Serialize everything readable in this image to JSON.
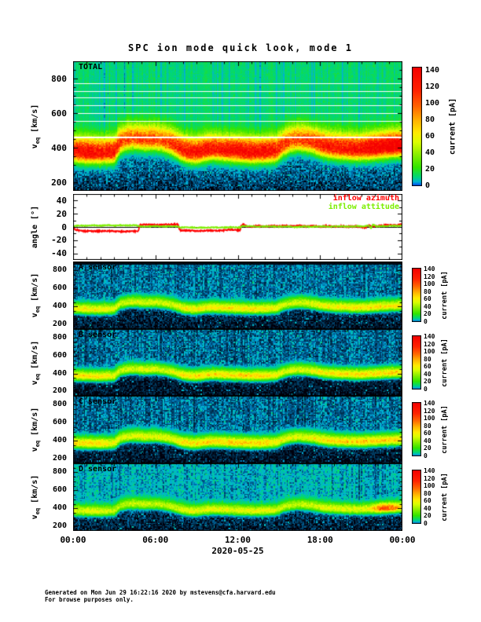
{
  "page": {
    "title": "SPC ion mode quick look, mode 1",
    "x_axis": {
      "tick_labels": [
        "00:00",
        "06:00",
        "12:00",
        "18:00",
        "00:00"
      ],
      "date_label": "2020-05-25"
    },
    "footer": {
      "line1": "Generated on Mon Jun 29 16:22:16 2020 by mstevens@cfa.harvard.edu",
      "line2": "For browse purposes only."
    }
  },
  "colorbar": {
    "label": "current [pA]",
    "ticks": [
      0,
      20,
      40,
      60,
      80,
      100,
      120,
      140
    ],
    "vmax": 145
  },
  "color_scale": [
    [
      0.0,
      "#0028ff"
    ],
    [
      0.04,
      "#00b4d2"
    ],
    [
      0.08,
      "#00d778"
    ],
    [
      0.16,
      "#32e600"
    ],
    [
      0.27,
      "#8cf000"
    ],
    [
      0.37,
      "#dcff00"
    ],
    [
      0.45,
      "#ffeb00"
    ],
    [
      0.55,
      "#ffb400"
    ],
    [
      0.67,
      "#ff6400"
    ],
    [
      0.8,
      "#ff2300"
    ],
    [
      1.0,
      "#f50000"
    ]
  ],
  "solar_wind_speed_profile": {
    "hours": [
      0,
      0.5,
      1,
      2,
      3,
      3.4,
      4,
      4.6,
      5.2,
      6,
      6.6,
      7,
      7.4,
      8,
      8.5,
      9,
      9.6,
      10.2,
      11,
      12,
      13,
      14,
      14.8,
      15.3,
      15.8,
      16.4,
      17,
      17.6,
      18,
      18.6,
      19.2,
      20,
      20.8,
      21.4,
      22,
      22.6,
      23.2,
      24
    ],
    "speed_kms": [
      380,
      375,
      372,
      370,
      375,
      430,
      450,
      452,
      445,
      448,
      438,
      428,
      412,
      385,
      375,
      372,
      385,
      392,
      386,
      380,
      374,
      376,
      382,
      415,
      435,
      444,
      438,
      428,
      415,
      404,
      398,
      393,
      390,
      393,
      398,
      404,
      408,
      412
    ]
  },
  "chart_data": [
    {
      "id": "total",
      "type": "heatmap",
      "label": "TOTAL",
      "ylabel": {
        "main": "v",
        "sub": "eq",
        "units": " [km/s]"
      },
      "ylim_render": [
        150,
        900
      ],
      "yticks": [
        200,
        400,
        600,
        800
      ],
      "ytick_minor": 50,
      "xlim_hours": [
        0,
        24
      ],
      "value_units": "pA",
      "seed": 3,
      "background": {
        "base": 12.5,
        "noise": 2.2,
        "stripe": 0.22,
        "cyan_prob": 0.1,
        "low_base": 6,
        "low_noise": 2.8,
        "sparkle": 4
      },
      "band": {
        "sigma_below": 36,
        "sigma_above": 58,
        "edge_below": 60,
        "peak_profile": [
          [
            0,
            122
          ],
          [
            1,
            126
          ],
          [
            2,
            121
          ],
          [
            3,
            118
          ],
          [
            3.6,
            96
          ],
          [
            4.4,
            92
          ],
          [
            5.2,
            97
          ],
          [
            6,
            93
          ],
          [
            6.8,
            99
          ],
          [
            7.4,
            108
          ],
          [
            8,
            118
          ],
          [
            9,
            123
          ],
          [
            10,
            118
          ],
          [
            11,
            123
          ],
          [
            12,
            127
          ],
          [
            13,
            129
          ],
          [
            14,
            126
          ],
          [
            15,
            112
          ],
          [
            15.8,
            96
          ],
          [
            16.6,
            99
          ],
          [
            17.2,
            103
          ],
          [
            18,
            113
          ],
          [
            19,
            119
          ],
          [
            20,
            121
          ],
          [
            21,
            127
          ],
          [
            21.8,
            138
          ],
          [
            22.4,
            143
          ],
          [
            23,
            145
          ],
          [
            24,
            145
          ]
        ]
      },
      "white_lines": [
        [
          465,
          2
        ],
        [
          555,
          1
        ],
        [
          600,
          1
        ],
        [
          645,
          1
        ],
        [
          690,
          1
        ],
        [
          727,
          1
        ],
        [
          773,
          1
        ]
      ]
    },
    {
      "id": "angle",
      "type": "line",
      "ylabel": {
        "main": "angle",
        "sub": "",
        "units": " [°]"
      },
      "ylim": [
        -50,
        50
      ],
      "yticks": [
        -40,
        -20,
        0,
        20,
        40
      ],
      "ytick_minor": 10,
      "xlim_hours": [
        0,
        24
      ],
      "zero_line": true,
      "legend": [
        {
          "label": "inflow azimuth",
          "color": "#ff0000"
        },
        {
          "label": "inflow attitude",
          "color": "#7dee00"
        }
      ],
      "series": [
        {
          "name": "inflow azimuth",
          "color": "#ff0000",
          "noise": 1.0,
          "seed": 7,
          "points": [
            [
              0,
              -2
            ],
            [
              0.2,
              -4
            ],
            [
              0.6,
              -6
            ],
            [
              1.5,
              -6.5
            ],
            [
              2.5,
              -6
            ],
            [
              3.5,
              -7
            ],
            [
              4.4,
              -6.5
            ],
            [
              4.75,
              -6.5
            ],
            [
              4.85,
              3
            ],
            [
              5.3,
              3.5
            ],
            [
              6,
              3
            ],
            [
              6.6,
              3.5
            ],
            [
              7.2,
              3.8
            ],
            [
              7.65,
              4
            ],
            [
              7.75,
              -5
            ],
            [
              8.3,
              -5.5
            ],
            [
              9,
              -6
            ],
            [
              9.8,
              -5.5
            ],
            [
              10.5,
              -6
            ],
            [
              11,
              -5
            ],
            [
              11.4,
              -4
            ],
            [
              11.8,
              -4.5
            ],
            [
              12.1,
              -5
            ],
            [
              12.18,
              -5
            ],
            [
              12.25,
              2
            ],
            [
              12.4,
              4
            ],
            [
              12.6,
              1
            ],
            [
              13,
              0.5
            ],
            [
              13.5,
              1.5
            ],
            [
              14,
              0.5
            ],
            [
              14.5,
              1.8
            ],
            [
              15,
              0.8
            ],
            [
              15.5,
              2
            ],
            [
              16,
              1
            ],
            [
              16.5,
              2.2
            ],
            [
              17,
              0.8
            ],
            [
              17.5,
              1.8
            ],
            [
              18,
              0.6
            ],
            [
              18.5,
              1.4
            ],
            [
              19,
              0.6
            ],
            [
              19.5,
              1.2
            ],
            [
              20,
              0.4
            ],
            [
              20.5,
              1.2
            ],
            [
              21,
              0.2
            ],
            [
              21.3,
              -1.5
            ],
            [
              21.5,
              2.5
            ],
            [
              21.8,
              1
            ],
            [
              22.2,
              1.8
            ],
            [
              22.6,
              2.4
            ],
            [
              23,
              3
            ],
            [
              23.4,
              2.4
            ],
            [
              23.8,
              3.6
            ],
            [
              24,
              4.2
            ]
          ]
        },
        {
          "name": "inflow attitude",
          "color": "#7dee00",
          "noise": 0.7,
          "seed": 11,
          "points": [
            [
              0,
              1.2
            ],
            [
              0.5,
              2.2
            ],
            [
              1,
              1.6
            ],
            [
              1.5,
              2.6
            ],
            [
              2,
              2
            ],
            [
              2.5,
              2.8
            ],
            [
              3,
              2
            ],
            [
              3.5,
              2.6
            ],
            [
              4,
              2.2
            ],
            [
              4.5,
              2.8
            ],
            [
              4.85,
              1
            ],
            [
              5.2,
              0.6
            ],
            [
              6,
              1.2
            ],
            [
              6.6,
              0.8
            ],
            [
              7.2,
              1.2
            ],
            [
              7.7,
              0.4
            ],
            [
              7.8,
              -0.8
            ],
            [
              8.5,
              -0.6
            ],
            [
              9.2,
              -1
            ],
            [
              10,
              -0.6
            ],
            [
              10.8,
              -1
            ],
            [
              11.5,
              -0.4
            ],
            [
              12.2,
              -0.8
            ],
            [
              12.3,
              1.4
            ],
            [
              13,
              1
            ],
            [
              13.6,
              0.4
            ],
            [
              14.2,
              1
            ],
            [
              15,
              0.4
            ],
            [
              15.6,
              1
            ],
            [
              16.2,
              -0.4
            ],
            [
              16.8,
              0.8
            ],
            [
              17.4,
              0.4
            ],
            [
              18,
              1
            ],
            [
              18.6,
              0.4
            ],
            [
              19.2,
              1
            ],
            [
              20,
              0.6
            ],
            [
              20.6,
              1.2
            ],
            [
              21.2,
              0.8
            ],
            [
              21.55,
              2.4
            ],
            [
              21.7,
              -2.2
            ],
            [
              21.85,
              4
            ],
            [
              22.1,
              0.8
            ],
            [
              22.6,
              1.4
            ],
            [
              23.2,
              1.8
            ],
            [
              23.6,
              1.4
            ],
            [
              24,
              2
            ]
          ]
        }
      ]
    },
    {
      "id": "a",
      "type": "heatmap",
      "label": "A sensor",
      "ylabel": {
        "main": "v",
        "sub": "eq",
        "units": " [km/s]"
      },
      "ylim_render": [
        150,
        900
      ],
      "yticks": [
        200,
        400,
        600,
        800
      ],
      "ytick_minor": 50,
      "xlim_hours": [
        0,
        24
      ],
      "value_units": "pA",
      "seed": 5,
      "top_dark_rows": 3,
      "background": {
        "base": 4.2,
        "noise": 2.6,
        "stripe": 0.3,
        "cyan_prob": 0.05,
        "low_base": 2.2,
        "low_noise": 2.2,
        "sparkle": 5
      },
      "band": {
        "sigma_below": 30,
        "sigma_above": 44,
        "edge_below": 50,
        "peak_profile": [
          [
            0,
            58
          ],
          [
            2,
            60
          ],
          [
            3.5,
            46
          ],
          [
            5,
            50
          ],
          [
            7,
            48
          ],
          [
            8,
            58
          ],
          [
            10,
            60
          ],
          [
            12,
            62
          ],
          [
            14,
            62
          ],
          [
            15.5,
            48
          ],
          [
            17,
            50
          ],
          [
            18,
            56
          ],
          [
            20,
            60
          ],
          [
            22,
            62
          ],
          [
            24,
            62
          ]
        ]
      },
      "white_lines": []
    },
    {
      "id": "b",
      "type": "heatmap",
      "label": "B sensor",
      "ylabel": {
        "main": "v",
        "sub": "eq",
        "units": " [km/s]"
      },
      "ylim_render": [
        150,
        900
      ],
      "yticks": [
        200,
        400,
        600,
        800
      ],
      "ytick_minor": 50,
      "xlim_hours": [
        0,
        24
      ],
      "value_units": "pA",
      "seed": 8,
      "background": {
        "base": 3.8,
        "noise": 2.6,
        "stripe": 0.3,
        "cyan_prob": 0.05,
        "low_base": 1.4,
        "low_noise": 1.8,
        "sparkle": 5
      },
      "band": {
        "sigma_below": 30,
        "sigma_above": 44,
        "edge_below": 50,
        "peak_profile": [
          [
            0,
            62
          ],
          [
            2,
            64
          ],
          [
            3.5,
            48
          ],
          [
            5,
            52
          ],
          [
            7,
            50
          ],
          [
            8,
            62
          ],
          [
            10,
            64
          ],
          [
            12,
            66
          ],
          [
            14,
            66
          ],
          [
            15.5,
            50
          ],
          [
            17,
            52
          ],
          [
            18,
            60
          ],
          [
            20,
            64
          ],
          [
            22,
            66
          ],
          [
            24,
            66
          ]
        ]
      },
      "white_lines": []
    },
    {
      "id": "c",
      "type": "heatmap",
      "label": "C sensor",
      "ylabel": {
        "main": "v",
        "sub": "eq",
        "units": " [km/s]"
      },
      "ylim_render": [
        150,
        900
      ],
      "yticks": [
        200,
        400,
        600,
        800
      ],
      "ytick_minor": 50,
      "xlim_hours": [
        0,
        24
      ],
      "value_units": "pA",
      "seed": 13,
      "background": {
        "base": 4.0,
        "noise": 2.6,
        "stripe": 0.3,
        "cyan_prob": 0.05,
        "low_base": 1.6,
        "low_noise": 2.0,
        "sparkle": 5
      },
      "band": {
        "sigma_below": 32,
        "sigma_above": 48,
        "edge_below": 50,
        "peak_profile": [
          [
            0,
            64
          ],
          [
            2,
            66
          ],
          [
            3.5,
            50
          ],
          [
            5,
            54
          ],
          [
            7,
            52
          ],
          [
            8,
            64
          ],
          [
            10,
            66
          ],
          [
            12,
            68
          ],
          [
            14,
            68
          ],
          [
            15.5,
            52
          ],
          [
            17,
            54
          ],
          [
            18,
            62
          ],
          [
            20,
            66
          ],
          [
            22,
            68
          ],
          [
            24,
            68
          ]
        ]
      },
      "white_lines": []
    },
    {
      "id": "d",
      "type": "heatmap",
      "label": "D sensor",
      "ylabel": {
        "main": "v",
        "sub": "eq",
        "units": " [km/s]"
      },
      "ylim_render": [
        150,
        900
      ],
      "yticks": [
        200,
        400,
        600,
        800
      ],
      "ytick_minor": 50,
      "xlim_hours": [
        0,
        24
      ],
      "value_units": "pA",
      "seed": 21,
      "background": {
        "base": 6.5,
        "noise": 3.2,
        "stripe": 0.3,
        "cyan_prob": 0.06,
        "low_base": 2.6,
        "low_noise": 2.4,
        "sparkle": 5
      },
      "band": {
        "sigma_below": 30,
        "sigma_above": 44,
        "edge_below": 50,
        "peak_profile": [
          [
            0,
            48
          ],
          [
            2,
            50
          ],
          [
            3.5,
            40
          ],
          [
            5,
            44
          ],
          [
            7,
            42
          ],
          [
            8,
            50
          ],
          [
            10,
            52
          ],
          [
            12,
            52
          ],
          [
            14,
            52
          ],
          [
            15.5,
            42
          ],
          [
            17,
            44
          ],
          [
            18,
            48
          ],
          [
            20,
            50
          ],
          [
            21.5,
            52
          ],
          [
            22,
            78
          ],
          [
            22.5,
            96
          ],
          [
            23,
            94
          ],
          [
            23.5,
            80
          ],
          [
            24,
            62
          ]
        ]
      },
      "white_lines": []
    }
  ]
}
